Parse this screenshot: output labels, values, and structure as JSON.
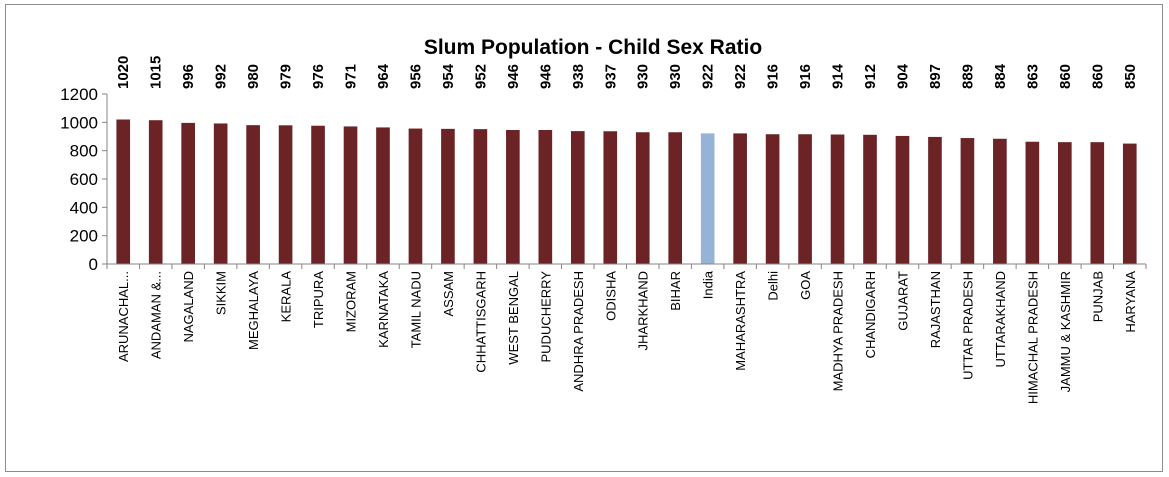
{
  "chart_data": {
    "type": "bar",
    "title": "Slum Population - Child  Sex Ratio",
    "xlabel": "",
    "ylabel": "",
    "ylim": [
      0,
      1200
    ],
    "yticks": [
      0,
      200,
      400,
      600,
      800,
      1000,
      1200
    ],
    "grid": false,
    "legend": "none",
    "categories": [
      "ARUNACHAL...",
      "ANDAMAN &...",
      "NAGALAND",
      "SIKKIM",
      "MEGHALAYA",
      "KERALA",
      "TRIPURA",
      "MIZORAM",
      "KARNATAKA",
      "TAMIL NADU",
      "ASSAM",
      "CHHATTISGARH",
      "WEST BENGAL",
      "PUDUCHERRY",
      "ANDHRA PRADESH",
      "ODISHA",
      "JHARKHAND",
      "BIHAR",
      "India",
      "MAHARASHTRA",
      "Delhi",
      "GOA",
      "MADHYA PRADESH",
      "CHANDIGARH",
      "GUJARAT",
      "RAJASTHAN",
      "UTTAR PRADESH",
      "UTTARAKHAND",
      "HIMACHAL PRADESH",
      "JAMMU & KASHMIR",
      "PUNJAB",
      "HARYANA"
    ],
    "values": [
      1020,
      1015,
      996,
      992,
      980,
      979,
      976,
      971,
      964,
      956,
      954,
      952,
      946,
      946,
      938,
      937,
      930,
      930,
      922,
      922,
      916,
      916,
      914,
      912,
      904,
      897,
      889,
      884,
      863,
      860,
      860,
      850
    ],
    "colors": {
      "bar": "#6b2325",
      "highlight": "#95b3d7",
      "axis": "#868686"
    },
    "highlight_category": "India"
  }
}
